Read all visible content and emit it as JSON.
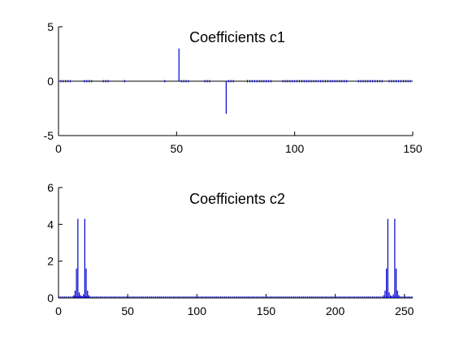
{
  "colors": {
    "stem": "#0000cc",
    "axis": "#000000",
    "baseline": "#000000",
    "background": "#ffffff"
  },
  "chart_data": [
    {
      "type": "stem",
      "title": "Coefficients c1",
      "xlim": [
        0,
        150
      ],
      "ylim": [
        -5,
        5
      ],
      "x_ticks": [
        0,
        50,
        100,
        150
      ],
      "y_ticks": [
        -5,
        0,
        5
      ],
      "series": [
        {
          "points": [
            {
              "x": 51,
              "y": 3.0
            },
            {
              "x": 71,
              "y": -3.0
            }
          ]
        }
      ],
      "near_zero_x": [
        1,
        2,
        3,
        4,
        5,
        11,
        12,
        13,
        14,
        19,
        20,
        21,
        28,
        45,
        52,
        53,
        54,
        55,
        62,
        63,
        64,
        72,
        73,
        74,
        80,
        81,
        82,
        83,
        84,
        85,
        86,
        87,
        88,
        89,
        90,
        95,
        96,
        97,
        98,
        99,
        100,
        101,
        102,
        103,
        104,
        105,
        106,
        107,
        108,
        109,
        110,
        111,
        112,
        113,
        114,
        115,
        116,
        117,
        118,
        119,
        120,
        121,
        122,
        127,
        128,
        129,
        130,
        131,
        132,
        133,
        134,
        135,
        136,
        137,
        140,
        141,
        142,
        143,
        144,
        145,
        146,
        147,
        148,
        149
      ]
    },
    {
      "type": "stem",
      "title": "Coefficients c2",
      "xlim": [
        0,
        256
      ],
      "ylim": [
        0,
        6
      ],
      "x_ticks": [
        0,
        50,
        100,
        150,
        200,
        250
      ],
      "y_ticks": [
        0,
        2,
        4,
        6
      ],
      "series": [
        {
          "points": [
            {
              "x": 11,
              "y": 0.15
            },
            {
              "x": 12,
              "y": 0.4
            },
            {
              "x": 13,
              "y": 1.6
            },
            {
              "x": 14,
              "y": 4.3
            },
            {
              "x": 15,
              "y": 0.3
            },
            {
              "x": 16,
              "y": 0.15
            },
            {
              "x": 17,
              "y": 0.1
            },
            {
              "x": 18,
              "y": 0.2
            },
            {
              "x": 19,
              "y": 4.3
            },
            {
              "x": 20,
              "y": 1.6
            },
            {
              "x": 21,
              "y": 0.4
            },
            {
              "x": 22,
              "y": 0.15
            },
            {
              "x": 235,
              "y": 0.15
            },
            {
              "x": 236,
              "y": 0.4
            },
            {
              "x": 237,
              "y": 1.6
            },
            {
              "x": 238,
              "y": 4.3
            },
            {
              "x": 239,
              "y": 0.3
            },
            {
              "x": 240,
              "y": 0.15
            },
            {
              "x": 241,
              "y": 0.1
            },
            {
              "x": 242,
              "y": 0.2
            },
            {
              "x": 243,
              "y": 4.3
            },
            {
              "x": 244,
              "y": 1.6
            },
            {
              "x": 245,
              "y": 0.4
            },
            {
              "x": 246,
              "y": 0.15
            }
          ]
        }
      ],
      "near_zero_x_range": [
        0,
        256
      ]
    }
  ]
}
